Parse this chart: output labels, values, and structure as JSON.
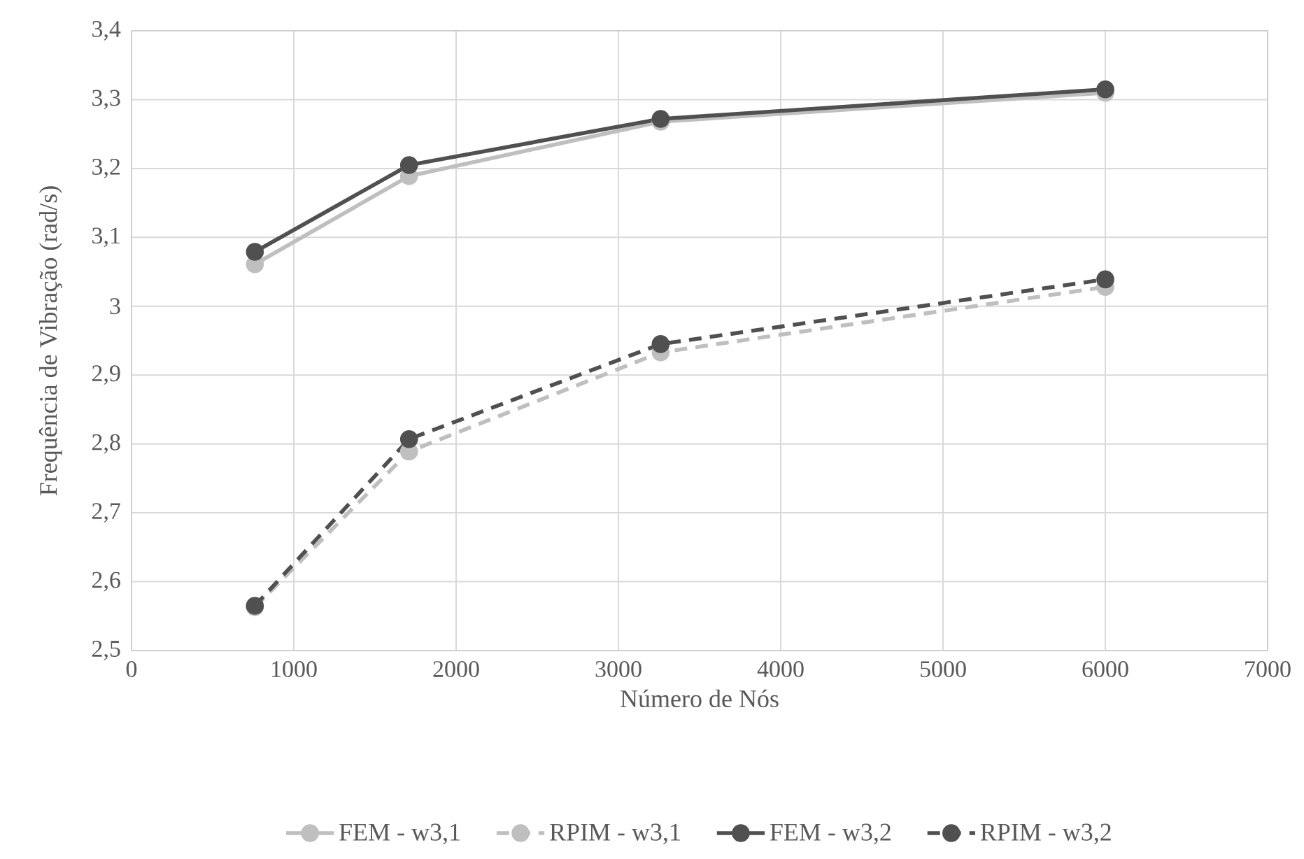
{
  "chart_data": {
    "type": "line",
    "xlabel": "Número de Nós",
    "ylabel": "Frequência de Vibração (rad/s)",
    "xlim": [
      0,
      7000
    ],
    "xticks": [
      0,
      1000,
      2000,
      3000,
      4000,
      5000,
      6000,
      7000
    ],
    "ylim": [
      2.5,
      3.4
    ],
    "yticks": [
      {
        "value": 2.5,
        "label": "2,5"
      },
      {
        "value": 2.6,
        "label": "2,6"
      },
      {
        "value": 2.7,
        "label": "2,7"
      },
      {
        "value": 2.8,
        "label": "2,8"
      },
      {
        "value": 2.9,
        "label": "2,9"
      },
      3,
      {
        "value": 3.1,
        "label": "3,1"
      },
      {
        "value": 3.2,
        "label": "3,2"
      },
      {
        "value": 3.3,
        "label": "3,3"
      },
      {
        "value": 3.4,
        "label": "3,4"
      }
    ],
    "x": [
      760,
      1710,
      3260,
      6000
    ],
    "grid": true,
    "legend": "bottom",
    "marker": "circle",
    "series": [
      {
        "name": "FEM - w3,1",
        "color": "#bfbfbf",
        "line_style": "solid",
        "values": [
          3.061,
          3.189,
          3.268,
          3.31
        ]
      },
      {
        "name": "RPIM - w3,1",
        "color": "#bfbfbf",
        "line_style": "dashed",
        "values": [
          2.563,
          2.789,
          2.933,
          3.028
        ]
      },
      {
        "name": "FEM - w3,2",
        "color": "#505050",
        "line_style": "solid",
        "values": [
          3.079,
          3.205,
          3.272,
          3.315
        ]
      },
      {
        "name": "RPIM - w3,2",
        "color": "#505050",
        "line_style": "dashed",
        "values": [
          2.565,
          2.807,
          2.945,
          3.039
        ]
      }
    ]
  }
}
